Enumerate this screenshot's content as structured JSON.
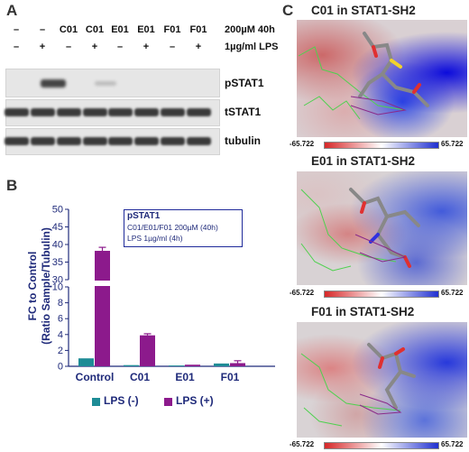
{
  "panel_a": {
    "letter": "A",
    "lps_signs": [
      "–",
      "+",
      "–",
      "+",
      "–",
      "+",
      "–",
      "+"
    ],
    "compound_labels": [
      "C01",
      "C01",
      "E01",
      "E01",
      "F01",
      "F01"
    ],
    "treatment_condition": "200µM 40h",
    "lps_condition": "1µg/ml LPS",
    "blots": [
      "pSTAT1",
      "tSTAT1",
      "tubulin"
    ]
  },
  "panel_b": {
    "letter": "B",
    "legend_box": {
      "title": "pSTAT1",
      "line1": "C01/E01/F01 200µM (40h)",
      "line2": "LPS 1µg/ml (4h)"
    }
  },
  "panel_c": {
    "letter": "C",
    "structures": [
      {
        "title": "C01 in STAT1-SH2",
        "cbar_min": "-65.722",
        "cbar_max": "65.722"
      },
      {
        "title": "E01 in STAT1-SH2",
        "cbar_min": "-65.722",
        "cbar_max": "65.722"
      },
      {
        "title": "F01 in STAT1-SH2",
        "cbar_min": "-65.722",
        "cbar_max": "65.722"
      }
    ],
    "colors": {
      "negative": "#d62728",
      "neutral": "#ffffff",
      "positive": "#1f2fd0"
    }
  },
  "chart_data": {
    "type": "bar",
    "categories": [
      "Control",
      "C01",
      "E01",
      "F01"
    ],
    "series": [
      {
        "name": "LPS (-)",
        "color": "#1e8c96",
        "values": [
          1.0,
          0.15,
          0.1,
          0.35
        ],
        "errors": [
          0,
          0,
          0,
          0
        ]
      },
      {
        "name": "LPS (+)",
        "color": "#8c1a8c",
        "values": [
          38.2,
          3.9,
          0.2,
          0.4
        ],
        "errors": [
          1.0,
          0.2,
          0,
          0.3
        ]
      }
    ],
    "ylabel_line1": "FC to Control",
    "ylabel_line2": "(Ratio Sample/Tubulin)",
    "axis_break": [
      10,
      30
    ],
    "ylim": [
      0,
      50
    ],
    "yticks_lower": [
      "0",
      "2",
      "4",
      "6",
      "8",
      "10"
    ],
    "yticks_upper": [
      "30",
      "35",
      "40",
      "45",
      "50"
    ],
    "legend_position": "bottom"
  }
}
